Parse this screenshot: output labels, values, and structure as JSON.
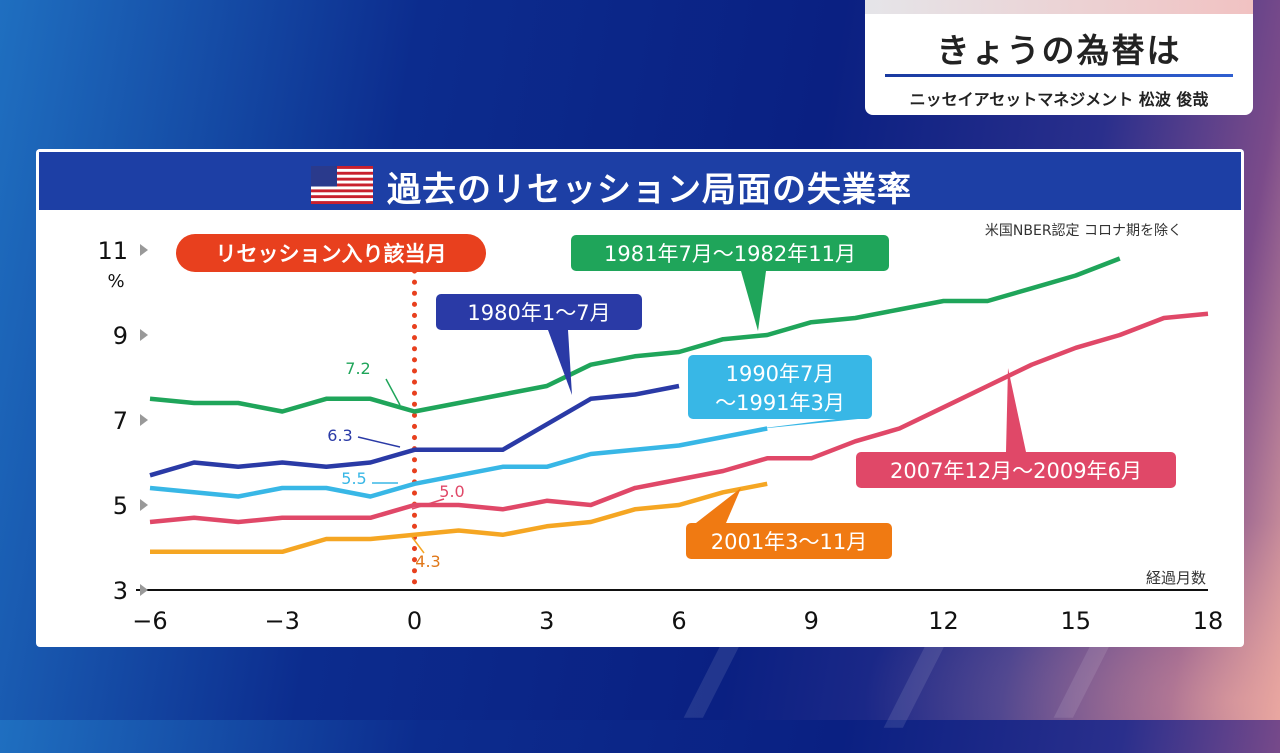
{
  "corner_box": {
    "title": "きょうの為替は",
    "subtitle": "ニッセイアセットマネジメント 松波 俊哉"
  },
  "chart_data": {
    "type": "line",
    "title": "過去のリセッション局面の失業率",
    "note": "米国NBER認定 コロナ期を除く",
    "xlabel": "経過月数",
    "ylabel": "%",
    "xlim": [
      -6,
      18.8
    ],
    "ylim": [
      3,
      11
    ],
    "x_ticks": [
      -6,
      -3,
      0,
      3,
      6,
      9,
      12,
      15,
      18
    ],
    "x_tick_labels": [
      "−6",
      "−3",
      "0",
      "3",
      "6",
      "9",
      "12",
      "15",
      "18"
    ],
    "y_ticks": [
      3,
      5,
      7,
      9,
      11
    ],
    "y_tick_labels": [
      "3",
      "5",
      "7",
      "9",
      "11"
    ],
    "vertical_marker": {
      "x": 0,
      "label": "リセッション入り該当月",
      "color": "#e8401e"
    },
    "colors": {
      "s1981": "#1fa55a",
      "s1980": "#2a3aa6",
      "s1990": "#38b7e6",
      "s2007": "#e04868",
      "s2001": "#f5a623",
      "label_2001_bg": "#f07a12"
    },
    "series": [
      {
        "name": "1981年7月～1982年11月",
        "color_key": "s1981",
        "x": [
          -6,
          -5,
          -4,
          -3,
          -2,
          -1,
          0,
          1,
          2,
          3,
          4,
          5,
          6,
          7,
          8,
          9,
          10,
          11,
          12,
          13,
          14,
          15,
          16
        ],
        "y": [
          7.5,
          7.4,
          7.4,
          7.2,
          7.5,
          7.5,
          7.2,
          7.4,
          7.6,
          7.8,
          8.3,
          8.5,
          8.6,
          8.9,
          9.0,
          9.3,
          9.4,
          9.6,
          9.8,
          9.8,
          10.1,
          10.4,
          10.8
        ],
        "start_value": "7.2",
        "start_value_x": 0
      },
      {
        "name": "1980年1～7月",
        "color_key": "s1980",
        "x": [
          -6,
          -5,
          -4,
          -3,
          -2,
          -1,
          0,
          1,
          2,
          3,
          4,
          5,
          6
        ],
        "y": [
          5.7,
          6.0,
          5.9,
          6.0,
          5.9,
          6.0,
          6.3,
          6.3,
          6.3,
          6.9,
          7.5,
          7.6,
          7.8
        ],
        "start_value": "6.3",
        "start_value_x": 0
      },
      {
        "name": "1990年7月\n～1991年3月",
        "color_key": "s1990",
        "x": [
          -6,
          -5,
          -4,
          -3,
          -2,
          -1,
          0,
          1,
          2,
          3,
          4,
          5,
          6,
          7,
          8
        ],
        "y": [
          5.4,
          5.3,
          5.2,
          5.4,
          5.4,
          5.2,
          5.5,
          5.7,
          5.9,
          5.9,
          6.2,
          6.3,
          6.4,
          6.6,
          6.8
        ],
        "start_value": "5.5",
        "start_value_x": 0
      },
      {
        "name": "2007年12月～2009年6月",
        "color_key": "s2007",
        "x": [
          -6,
          -5,
          -4,
          -3,
          -2,
          -1,
          0,
          1,
          2,
          3,
          4,
          5,
          6,
          7,
          8,
          9,
          10,
          11,
          12,
          13,
          14,
          15,
          16,
          17,
          18
        ],
        "y": [
          4.6,
          4.7,
          4.6,
          4.7,
          4.7,
          4.7,
          5.0,
          5.0,
          4.9,
          5.1,
          5.0,
          5.4,
          5.6,
          5.8,
          6.1,
          6.1,
          6.5,
          6.8,
          7.3,
          7.8,
          8.3,
          8.7,
          9.0,
          9.4,
          9.5
        ],
        "start_value": "5.0",
        "start_value_x": 0
      },
      {
        "name": "2001年3～11月",
        "color_key": "s2001",
        "x": [
          -6,
          -5,
          -4,
          -3,
          -2,
          -1,
          0,
          1,
          2,
          3,
          4,
          5,
          6,
          7,
          8
        ],
        "y": [
          3.9,
          3.9,
          3.9,
          3.9,
          4.2,
          4.2,
          4.3,
          4.4,
          4.3,
          4.5,
          4.6,
          4.9,
          5.0,
          5.3,
          5.5
        ],
        "start_value": "4.3",
        "start_value_x": 0
      }
    ]
  }
}
